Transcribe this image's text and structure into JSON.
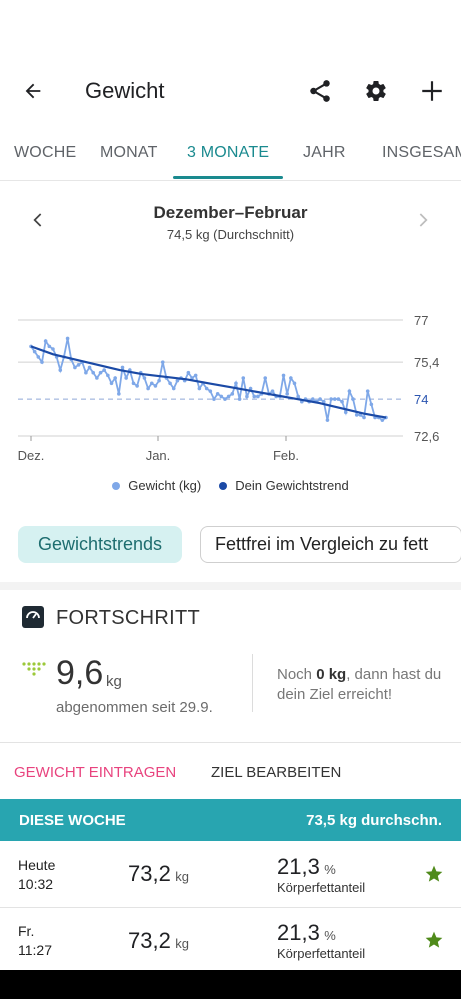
{
  "header": {
    "title": "Gewicht"
  },
  "tabs": [
    {
      "label": "WOCHE"
    },
    {
      "label": "MONAT"
    },
    {
      "label": "3 MONATE"
    },
    {
      "label": "JAHR"
    },
    {
      "label": "INSGESAMT"
    }
  ],
  "range": {
    "title": "Dezember–Februar",
    "subtitle": "74,5 kg (Durchschnitt)"
  },
  "chart_data": {
    "type": "line",
    "x_tick_labels": [
      "Dez.",
      "Jan.",
      "Feb."
    ],
    "y_tick_labels": [
      "77",
      "75,4",
      "74",
      "72,6"
    ],
    "y_ticks": [
      77,
      75.4,
      74,
      72.6
    ],
    "ylim": [
      72.6,
      77
    ],
    "goal_line": 74,
    "goal_label": "74",
    "series": [
      {
        "name": "Gewicht (kg)",
        "color": "#7fa8e8",
        "values": [
          76.0,
          75.8,
          75.6,
          75.4,
          76.2,
          76.0,
          75.9,
          75.6,
          75.1,
          75.6,
          76.3,
          75.5,
          75.2,
          75.3,
          75.4,
          75.0,
          75.2,
          75.0,
          74.8,
          75.0,
          75.1,
          74.9,
          74.6,
          74.8,
          74.2,
          75.2,
          74.8,
          75.1,
          74.6,
          74.5,
          75.0,
          74.8,
          74.4,
          74.6,
          74.5,
          74.7,
          75.4,
          74.8,
          74.6,
          74.4,
          74.7,
          74.8,
          74.7,
          75.0,
          74.8,
          74.9,
          74.4,
          74.6,
          74.4,
          74.3,
          74.0,
          74.2,
          74.1,
          74.0,
          74.1,
          74.2,
          74.6,
          74.0,
          74.8,
          74.1,
          74.4,
          74.1,
          74.1,
          74.2,
          74.8,
          74.2,
          74.3,
          74.1,
          74.1,
          74.9,
          74.2,
          74.8,
          74.6,
          74.1,
          73.9,
          74.0,
          73.9,
          74.0,
          73.9,
          74.0,
          73.9,
          73.2,
          74.0,
          74.0,
          74.0,
          73.9,
          73.5,
          74.3,
          74.0,
          73.4,
          73.4,
          73.3,
          74.3,
          73.8,
          73.3,
          73.3,
          73.2,
          73.3
        ]
      },
      {
        "name": "Dein Gewichtstrend",
        "color": "#1b4aa6",
        "values": [
          76.0,
          75.7,
          75.5,
          75.3,
          75.1,
          74.95,
          74.85,
          74.75,
          74.6,
          74.45,
          74.3,
          74.15,
          74.0,
          73.85,
          73.65,
          73.45,
          73.3
        ]
      }
    ]
  },
  "legend": {
    "weight": "Gewicht (kg)",
    "trend": "Dein Gewichtstrend"
  },
  "chips": {
    "primary": "Gewichtstrends",
    "secondary": "Fettfrei im Vergleich zu fett"
  },
  "progress": {
    "title": "FORTSCHRITT",
    "value": "9,6",
    "unit": "kg",
    "caption": "abgenommen seit 29.9.",
    "goal_prefix": "Noch ",
    "goal_amount": "0 kg",
    "goal_suffix": ", dann hast du dein Ziel erreicht!"
  },
  "actions": {
    "log": "GEWICHT EINTRAGEN",
    "edit": "ZIEL BEARBEITEN"
  },
  "week": {
    "title": "DIESE WOCHE",
    "avg": "73,5 kg durchschn."
  },
  "entries": [
    {
      "day": "Heute",
      "time": "10:32",
      "weight": "73,2",
      "weight_unit": "kg",
      "fat": "21,3",
      "fat_unit": "%",
      "fat_label": "Körperfettanteil"
    },
    {
      "day": "Fr.",
      "time": "11:27",
      "weight": "73,2",
      "weight_unit": "kg",
      "fat": "21,3",
      "fat_unit": "%",
      "fat_label": "Körperfettanteil"
    }
  ],
  "colors": {
    "accent": "#1a8a8f",
    "log_action": "#e8437e",
    "week_bar": "#28a5b0",
    "star": "#4f8a1a"
  }
}
